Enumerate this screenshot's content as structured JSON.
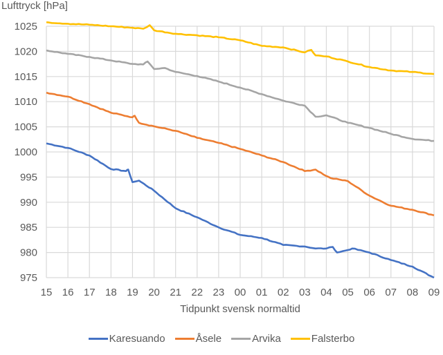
{
  "chart_data": {
    "type": "line",
    "title": "",
    "ylabel": "Lufttryck [hPa]",
    "xlabel": "Tidpunkt svensk normaltid",
    "ylim": [
      975,
      1025
    ],
    "yticks": [
      975,
      980,
      985,
      990,
      995,
      1000,
      1005,
      1010,
      1015,
      1020,
      1025
    ],
    "xticks": [
      "15",
      "16",
      "17",
      "18",
      "19",
      "20",
      "21",
      "22",
      "23",
      "00",
      "01",
      "02",
      "03",
      "04",
      "05",
      "06",
      "07",
      "08",
      "09"
    ],
    "grid": true,
    "legend_position": "bottom",
    "series": [
      {
        "name": "Karesuando",
        "color": "#4472C4",
        "points": [
          [
            0,
            1001.7
          ],
          [
            1,
            1000.8
          ],
          [
            2,
            999.3
          ],
          [
            3,
            996.6
          ],
          [
            3.7,
            996.2
          ],
          [
            3.8,
            996.5
          ],
          [
            4,
            994.0
          ],
          [
            4.3,
            994.3
          ],
          [
            5,
            992.3
          ],
          [
            6,
            988.8
          ],
          [
            7,
            987.0
          ],
          [
            8,
            985.0
          ],
          [
            9,
            983.5
          ],
          [
            10,
            982.9
          ],
          [
            11,
            981.5
          ],
          [
            12,
            981.2
          ],
          [
            12.5,
            980.8
          ],
          [
            13,
            980.8
          ],
          [
            13.3,
            981.1
          ],
          [
            13.5,
            980.0
          ],
          [
            14,
            980.5
          ],
          [
            14.2,
            980.8
          ],
          [
            15,
            980.0
          ],
          [
            16,
            978.5
          ],
          [
            17,
            977.2
          ],
          [
            18,
            975.0
          ]
        ]
      },
      {
        "name": "Åsele",
        "color": "#ED7D31",
        "points": [
          [
            0,
            1011.8
          ],
          [
            1,
            1011.0
          ],
          [
            2,
            1009.5
          ],
          [
            3,
            1007.8
          ],
          [
            4,
            1006.9
          ],
          [
            4.1,
            1007.2
          ],
          [
            4.3,
            1005.8
          ],
          [
            5,
            1005.1
          ],
          [
            6,
            1004.2
          ],
          [
            7,
            1002.8
          ],
          [
            8,
            1001.8
          ],
          [
            9,
            1000.6
          ],
          [
            10,
            999.3
          ],
          [
            11,
            998.0
          ],
          [
            12,
            996.2
          ],
          [
            12.5,
            996.5
          ],
          [
            13,
            995.2
          ],
          [
            13.2,
            994.8
          ],
          [
            14,
            994.2
          ],
          [
            15,
            991.3
          ],
          [
            16,
            989.3
          ],
          [
            17,
            988.5
          ],
          [
            18,
            987.4
          ]
        ]
      },
      {
        "name": "Arvika",
        "color": "#A5A5A5",
        "points": [
          [
            0,
            1020.2
          ],
          [
            1,
            1019.5
          ],
          [
            2,
            1018.9
          ],
          [
            3,
            1018.2
          ],
          [
            4,
            1017.5
          ],
          [
            4.5,
            1017.4
          ],
          [
            4.7,
            1018.0
          ],
          [
            5,
            1016.5
          ],
          [
            5.5,
            1016.7
          ],
          [
            6,
            1015.9
          ],
          [
            7,
            1015.1
          ],
          [
            8,
            1014.0
          ],
          [
            9,
            1012.8
          ],
          [
            10,
            1011.5
          ],
          [
            11,
            1010.2
          ],
          [
            12,
            1009.2
          ],
          [
            12.5,
            1007.0
          ],
          [
            13,
            1007.3
          ],
          [
            14,
            1005.8
          ],
          [
            15,
            1004.8
          ],
          [
            16,
            1003.6
          ],
          [
            17,
            1002.6
          ],
          [
            18,
            1002.2
          ]
        ]
      },
      {
        "name": "Falsterbo",
        "color": "#FFC000",
        "points": [
          [
            0,
            1025.8
          ],
          [
            1,
            1025.5
          ],
          [
            2,
            1025.3
          ],
          [
            3,
            1025.0
          ],
          [
            4,
            1024.7
          ],
          [
            4.5,
            1024.5
          ],
          [
            4.8,
            1025.2
          ],
          [
            5,
            1024.2
          ],
          [
            6,
            1023.5
          ],
          [
            7,
            1023.2
          ],
          [
            8,
            1022.8
          ],
          [
            9,
            1022.2
          ],
          [
            10,
            1021.1
          ],
          [
            11,
            1020.8
          ],
          [
            12,
            1019.8
          ],
          [
            12.3,
            1020.3
          ],
          [
            12.5,
            1019.2
          ],
          [
            13,
            1019.0
          ],
          [
            14,
            1018.0
          ],
          [
            15,
            1016.9
          ],
          [
            16,
            1016.2
          ],
          [
            17,
            1015.9
          ],
          [
            18,
            1015.5
          ]
        ]
      }
    ]
  }
}
